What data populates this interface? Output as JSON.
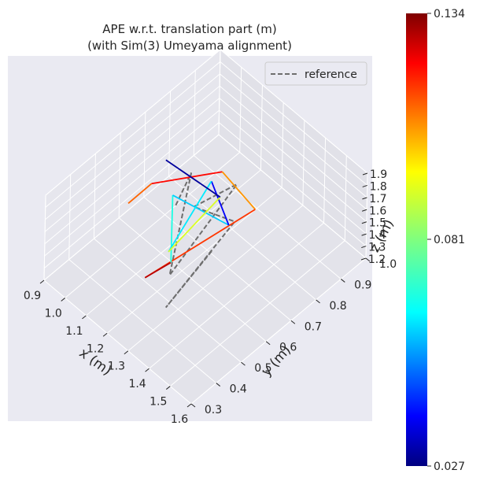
{
  "chart_data": {
    "type": "line",
    "projection": "3d",
    "title": "APE w.r.t. translation part (m)",
    "subtitle": "(with Sim(3) Umeyama alignment)",
    "xlabel": "x (m)",
    "ylabel": "y (m)",
    "zlabel": "z (m)",
    "xlim": [
      0.9,
      1.6
    ],
    "ylim": [
      0.3,
      1.0
    ],
    "zlim": [
      1.2,
      1.9
    ],
    "x_ticks": [
      "0.9",
      "1.0",
      "1.1",
      "1.2",
      "1.3",
      "1.4",
      "1.5",
      "1.6"
    ],
    "y_ticks": [
      "0.3",
      "0.4",
      "0.5",
      "0.6",
      "0.7",
      "0.8",
      "0.9",
      "1.0"
    ],
    "z_ticks": [
      "1.2",
      "1.3",
      "1.4",
      "1.5",
      "1.6",
      "1.7",
      "1.8",
      "1.9"
    ],
    "grid": true,
    "legend": {
      "position": "top-right",
      "entries": [
        "reference"
      ]
    },
    "reference_style": {
      "color": "#6e6e6e",
      "dash": "dashed"
    },
    "colorbar": {
      "colormap": "jet",
      "min_label": "0.027",
      "mid_label": "0.081",
      "max_label": "0.134",
      "min": 0.027,
      "max": 0.134
    },
    "reference": [
      [
        1.05,
        0.7,
        1.35
      ],
      [
        1.12,
        0.7,
        1.72
      ],
      [
        1.2,
        0.55,
        1.25
      ],
      [
        1.22,
        0.8,
        1.6
      ],
      [
        1.25,
        0.6,
        1.8
      ],
      [
        1.27,
        0.75,
        1.45
      ],
      [
        1.3,
        0.45,
        1.3
      ],
      [
        1.4,
        0.55,
        1.75
      ]
    ],
    "estimate": [
      [
        1.0,
        0.55,
        1.55,
        0.11
      ],
      [
        1.05,
        0.6,
        1.7,
        0.12
      ],
      [
        1.15,
        0.8,
        1.6,
        0.105
      ],
      [
        1.25,
        0.85,
        1.35,
        0.115
      ],
      [
        1.2,
        0.45,
        1.4,
        0.128
      ],
      [
        1.32,
        0.45,
        1.7,
        0.07
      ],
      [
        1.15,
        0.6,
        1.75,
        0.062
      ],
      [
        1.3,
        0.7,
        1.55,
        0.04
      ],
      [
        1.1,
        0.8,
        1.45,
        0.065
      ],
      [
        1.25,
        0.5,
        1.6,
        0.09
      ],
      [
        1.2,
        0.75,
        1.55,
        0.03
      ],
      [
        1.0,
        0.7,
        1.65,
        0.132
      ]
    ]
  }
}
